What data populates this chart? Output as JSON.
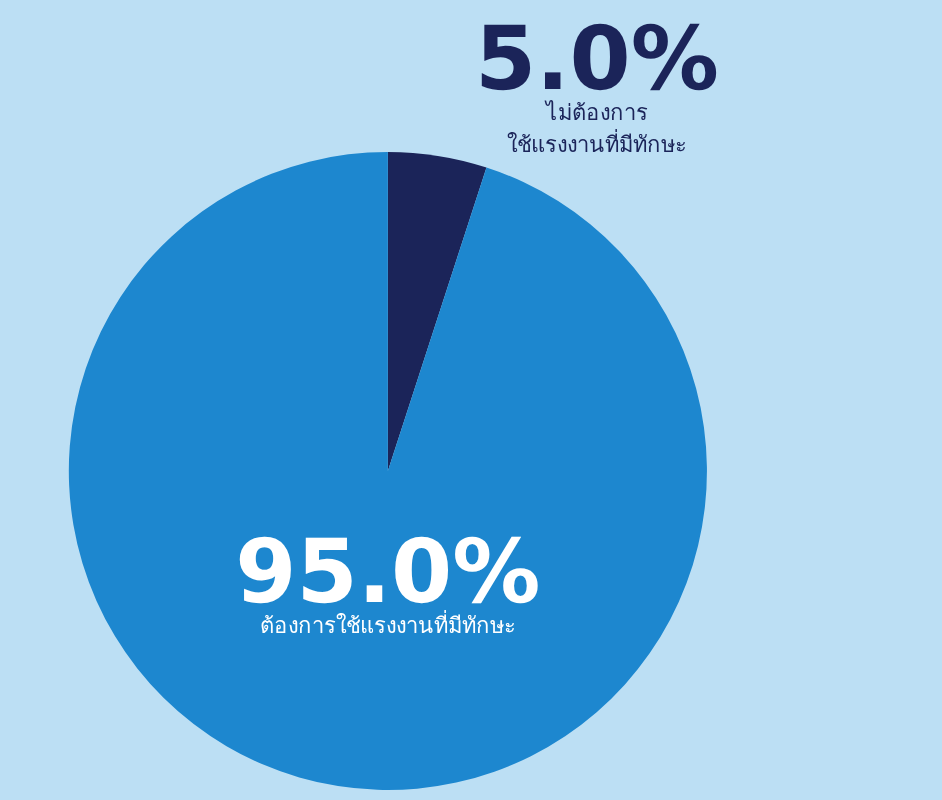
{
  "chart_data": {
    "type": "pie",
    "categories": [
      "ไม่ต้องการ ใช้แรงงานที่มีทักษะ",
      "ต้องการใช้แรงงานที่มีทักษะ"
    ],
    "values": [
      5.0,
      95.0
    ],
    "value_labels": [
      "5.0%",
      "95.0%"
    ],
    "colors": [
      "#1b2459",
      "#1d87cf"
    ],
    "legend": false
  }
}
